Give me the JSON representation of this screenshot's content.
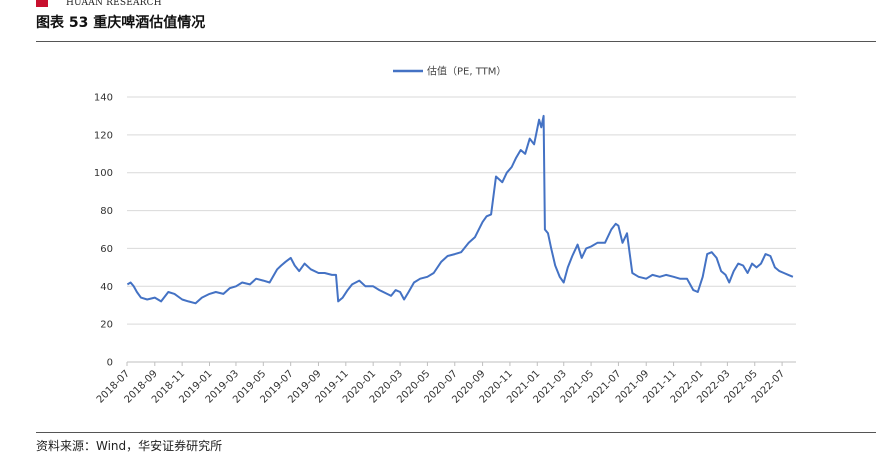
{
  "header": {
    "brand_text": "HUAAN RESEARCH",
    "title": "图表 53  重庆啤酒估值情况"
  },
  "footer": {
    "source": "资料来源：Wind，华安证券研究所"
  },
  "colors": {
    "brand": "#c8102e",
    "series": "#4472c4"
  },
  "chart_data": {
    "type": "line",
    "title": "",
    "xlabel": "",
    "ylabel": "",
    "ylim": [
      0,
      140
    ],
    "yticks": [
      0,
      20,
      40,
      60,
      80,
      100,
      120,
      140
    ],
    "xlim": [
      "2018-07",
      "2022-08"
    ],
    "xticks": [
      "2018-07",
      "2018-09",
      "2018-11",
      "2019-01",
      "2019-03",
      "2019-05",
      "2019-07",
      "2019-09",
      "2019-11",
      "2020-01",
      "2020-03",
      "2020-05",
      "2020-07",
      "2020-09",
      "2020-11",
      "2021-01",
      "2021-03",
      "2021-05",
      "2021-07",
      "2021-09",
      "2021-11",
      "2022-01",
      "2022-03",
      "2022-05",
      "2022-07"
    ],
    "grid": "horizontal",
    "legend": "top-center",
    "series": [
      {
        "name": "估值（PE, TTM）",
        "color": "#4472c4",
        "points": [
          [
            "2018-07-02",
            41
          ],
          [
            "2018-07-09",
            42
          ],
          [
            "2018-07-16",
            40
          ],
          [
            "2018-07-23",
            37
          ],
          [
            "2018-08-01",
            34
          ],
          [
            "2018-08-15",
            33
          ],
          [
            "2018-09-01",
            34
          ],
          [
            "2018-09-15",
            32
          ],
          [
            "2018-10-01",
            37
          ],
          [
            "2018-10-15",
            36
          ],
          [
            "2018-11-01",
            33
          ],
          [
            "2018-11-15",
            32
          ],
          [
            "2018-12-01",
            31
          ],
          [
            "2018-12-15",
            34
          ],
          [
            "2019-01-01",
            36
          ],
          [
            "2019-01-15",
            37
          ],
          [
            "2019-02-01",
            36
          ],
          [
            "2019-02-15",
            39
          ],
          [
            "2019-03-01",
            40
          ],
          [
            "2019-03-15",
            42
          ],
          [
            "2019-04-01",
            41
          ],
          [
            "2019-04-15",
            44
          ],
          [
            "2019-05-01",
            43
          ],
          [
            "2019-05-15",
            42
          ],
          [
            "2019-06-01",
            49
          ],
          [
            "2019-06-10",
            51
          ],
          [
            "2019-06-20",
            53
          ],
          [
            "2019-07-01",
            55
          ],
          [
            "2019-07-10",
            51
          ],
          [
            "2019-07-20",
            48
          ],
          [
            "2019-08-01",
            52
          ],
          [
            "2019-08-15",
            49
          ],
          [
            "2019-09-01",
            47
          ],
          [
            "2019-09-15",
            47
          ],
          [
            "2019-10-01",
            46
          ],
          [
            "2019-10-10",
            46
          ],
          [
            "2019-10-15",
            32
          ],
          [
            "2019-10-25",
            34
          ],
          [
            "2019-11-05",
            38
          ],
          [
            "2019-11-15",
            41
          ],
          [
            "2019-12-01",
            43
          ],
          [
            "2019-12-15",
            40
          ],
          [
            "2020-01-01",
            40
          ],
          [
            "2020-01-15",
            38
          ],
          [
            "2020-02-01",
            36
          ],
          [
            "2020-02-10",
            35
          ],
          [
            "2020-02-20",
            38
          ],
          [
            "2020-03-01",
            37
          ],
          [
            "2020-03-10",
            33
          ],
          [
            "2020-03-20",
            37
          ],
          [
            "2020-04-01",
            42
          ],
          [
            "2020-04-15",
            44
          ],
          [
            "2020-05-01",
            45
          ],
          [
            "2020-05-15",
            47
          ],
          [
            "2020-06-01",
            53
          ],
          [
            "2020-06-15",
            56
          ],
          [
            "2020-07-01",
            57
          ],
          [
            "2020-07-15",
            58
          ],
          [
            "2020-08-01",
            63
          ],
          [
            "2020-08-15",
            66
          ],
          [
            "2020-09-01",
            74
          ],
          [
            "2020-09-10",
            77
          ],
          [
            "2020-09-20",
            78
          ],
          [
            "2020-10-01",
            98
          ],
          [
            "2020-10-15",
            95
          ],
          [
            "2020-10-25",
            100
          ],
          [
            "2020-11-05",
            103
          ],
          [
            "2020-11-15",
            108
          ],
          [
            "2020-11-25",
            112
          ],
          [
            "2020-12-05",
            110
          ],
          [
            "2020-12-15",
            118
          ],
          [
            "2020-12-25",
            115
          ],
          [
            "2021-01-05",
            128
          ],
          [
            "2021-01-10",
            124
          ],
          [
            "2021-01-15",
            130
          ],
          [
            "2021-01-18",
            70
          ],
          [
            "2021-01-25",
            68
          ],
          [
            "2021-02-01",
            60
          ],
          [
            "2021-02-10",
            51
          ],
          [
            "2021-02-20",
            45
          ],
          [
            "2021-03-01",
            42
          ],
          [
            "2021-03-10",
            50
          ],
          [
            "2021-03-20",
            56
          ],
          [
            "2021-04-01",
            62
          ],
          [
            "2021-04-10",
            55
          ],
          [
            "2021-04-20",
            60
          ],
          [
            "2021-05-01",
            61
          ],
          [
            "2021-05-15",
            63
          ],
          [
            "2021-06-01",
            63
          ],
          [
            "2021-06-15",
            70
          ],
          [
            "2021-06-25",
            73
          ],
          [
            "2021-07-01",
            72
          ],
          [
            "2021-07-10",
            63
          ],
          [
            "2021-07-20",
            68
          ],
          [
            "2021-08-01",
            47
          ],
          [
            "2021-08-15",
            45
          ],
          [
            "2021-09-01",
            44
          ],
          [
            "2021-09-15",
            46
          ],
          [
            "2021-10-01",
            45
          ],
          [
            "2021-10-15",
            46
          ],
          [
            "2021-11-01",
            45
          ],
          [
            "2021-11-15",
            44
          ],
          [
            "2021-12-01",
            44
          ],
          [
            "2021-12-15",
            38
          ],
          [
            "2021-12-25",
            37
          ],
          [
            "2022-01-05",
            45
          ],
          [
            "2022-01-15",
            57
          ],
          [
            "2022-01-25",
            58
          ],
          [
            "2022-02-05",
            55
          ],
          [
            "2022-02-15",
            48
          ],
          [
            "2022-02-25",
            46
          ],
          [
            "2022-03-05",
            42
          ],
          [
            "2022-03-15",
            48
          ],
          [
            "2022-03-25",
            52
          ],
          [
            "2022-04-05",
            51
          ],
          [
            "2022-04-15",
            47
          ],
          [
            "2022-04-25",
            52
          ],
          [
            "2022-05-05",
            50
          ],
          [
            "2022-05-15",
            52
          ],
          [
            "2022-05-25",
            57
          ],
          [
            "2022-06-05",
            56
          ],
          [
            "2022-06-15",
            50
          ],
          [
            "2022-06-25",
            48
          ],
          [
            "2022-07-05",
            47
          ],
          [
            "2022-07-15",
            46
          ],
          [
            "2022-07-25",
            45
          ]
        ]
      }
    ]
  }
}
